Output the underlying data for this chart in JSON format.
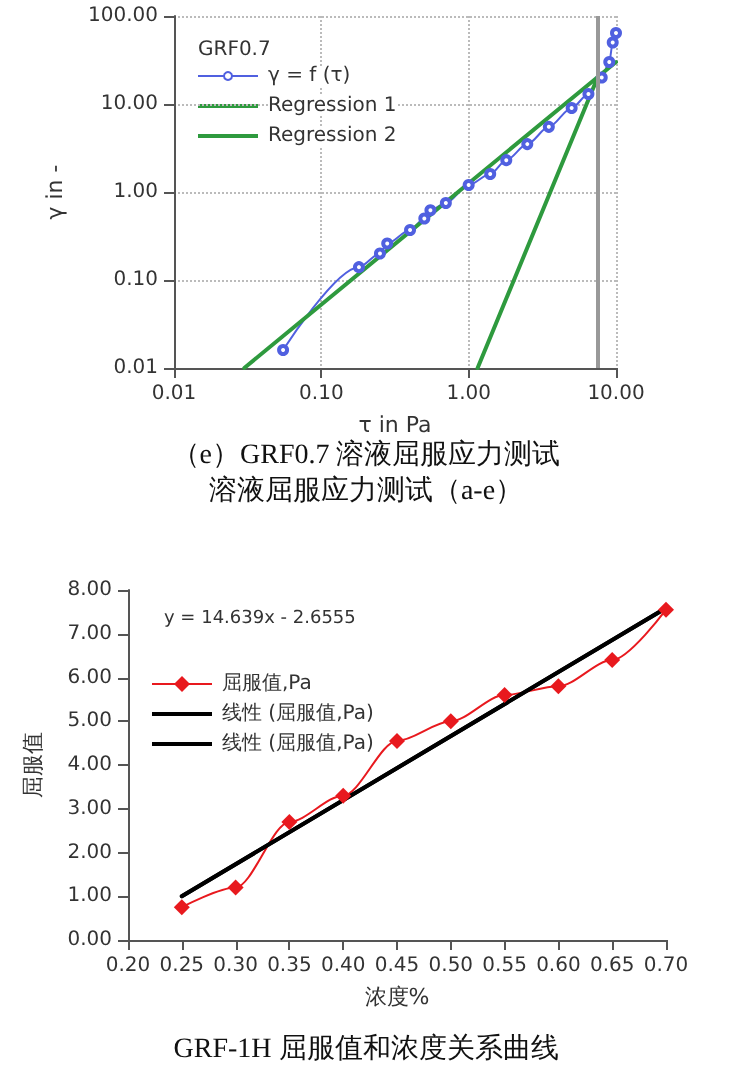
{
  "chart_data": [
    {
      "type": "line",
      "title": "（e）GRF0.7 溶液屈服应力测试",
      "subtitle": "溶液屈服应力测试（a-e）",
      "xlabel": "τ in Pa",
      "ylabel": "γ in -",
      "legend_title": "GRF0.7",
      "legend": "top left",
      "log": "xy",
      "grid": true,
      "line_style": "solid",
      "xlim": [
        0.01,
        10
      ],
      "ylim": [
        0.01,
        100
      ],
      "xticks": [
        {
          "value": 0.01,
          "label": "0.01"
        },
        {
          "value": 0.1,
          "label": "0.10"
        },
        {
          "value": 1,
          "label": "1.00"
        },
        {
          "value": 10,
          "label": "10.00"
        }
      ],
      "yticks": [
        {
          "value": 0.01,
          "label": "0.01"
        },
        {
          "value": 0.1,
          "label": "0.10"
        },
        {
          "value": 1,
          "label": "1.00"
        },
        {
          "value": 10,
          "label": "10.00"
        },
        {
          "value": 100,
          "label": "100.00"
        }
      ],
      "ref_lines": [
        {
          "axis": "x",
          "value": 7.5,
          "label": null,
          "color": "#999999"
        }
      ],
      "series": [
        {
          "name": "γ = f (τ)",
          "color": "#5060e0",
          "marker": "circle",
          "x": [
            0.055,
            0.18,
            0.25,
            0.28,
            0.4,
            0.5,
            0.55,
            0.7,
            1,
            1.4,
            1.8,
            2.5,
            3.5,
            5,
            6.5,
            8,
            9,
            9.5,
            10
          ],
          "values": [
            0.016,
            0.14,
            0.2,
            0.26,
            0.37,
            0.5,
            0.62,
            0.75,
            1.2,
            1.6,
            2.3,
            3.5,
            5.5,
            9,
            13,
            20,
            30,
            50,
            64
          ]
        },
        {
          "name": "Regression 1",
          "color": "#2e9a3e",
          "marker": "none",
          "x": [
            0.03,
            10
          ],
          "values": [
            0.01,
            30
          ]
        },
        {
          "name": "Regression 2",
          "color": "#2e9a3e",
          "marker": "none",
          "x": [
            1.15,
            7.5
          ],
          "values": [
            0.01,
            20
          ]
        }
      ]
    },
    {
      "type": "line",
      "title": "GRF-1H 屈服值和浓度关系曲线",
      "xlabel": "浓度%",
      "ylabel": "屈服值",
      "legend": "top left",
      "grid": false,
      "annotations": [
        "y = 14.639x - 2.6555"
      ],
      "xlim": [
        0.2,
        0.7
      ],
      "ylim": [
        0,
        8
      ],
      "xticks": [
        {
          "value": 0.2,
          "label": "0.20"
        },
        {
          "value": 0.25,
          "label": "0.25"
        },
        {
          "value": 0.3,
          "label": "0.30"
        },
        {
          "value": 0.35,
          "label": "0.35"
        },
        {
          "value": 0.4,
          "label": "0.40"
        },
        {
          "value": 0.45,
          "label": "0.45"
        },
        {
          "value": 0.5,
          "label": "0.50"
        },
        {
          "value": 0.55,
          "label": "0.55"
        },
        {
          "value": 0.6,
          "label": "0.60"
        },
        {
          "value": 0.65,
          "label": "0.65"
        },
        {
          "value": 0.7,
          "label": "0.70"
        }
      ],
      "yticks": [
        {
          "value": 0,
          "label": "0.00"
        },
        {
          "value": 1,
          "label": "1.00"
        },
        {
          "value": 2,
          "label": "2.00"
        },
        {
          "value": 3,
          "label": "3.00"
        },
        {
          "value": 4,
          "label": "4.00"
        },
        {
          "value": 5,
          "label": "5.00"
        },
        {
          "value": 6,
          "label": "6.00"
        },
        {
          "value": 7,
          "label": "7.00"
        },
        {
          "value": 8,
          "label": "8.00"
        }
      ],
      "x": [
        0.25,
        0.3,
        0.35,
        0.4,
        0.45,
        0.5,
        0.55,
        0.6,
        0.65,
        0.7
      ],
      "series": [
        {
          "name": "屈服值,Pa",
          "color": "#e8191e",
          "marker": "diamond",
          "values": [
            0.75,
            1.2,
            2.7,
            3.3,
            4.55,
            5.0,
            5.6,
            5.8,
            6.4,
            7.55
          ]
        },
        {
          "name": "线性 (屈服值,Pa)",
          "color": "#000000",
          "marker": "none",
          "x": [
            0.25,
            0.7
          ],
          "values": [
            1.0,
            7.59
          ]
        },
        {
          "name": "线性 (屈服值,Pa)",
          "color": "#000000",
          "marker": "none",
          "x": [
            0.25,
            0.7
          ],
          "values": [
            1.0,
            7.59
          ]
        }
      ]
    }
  ]
}
